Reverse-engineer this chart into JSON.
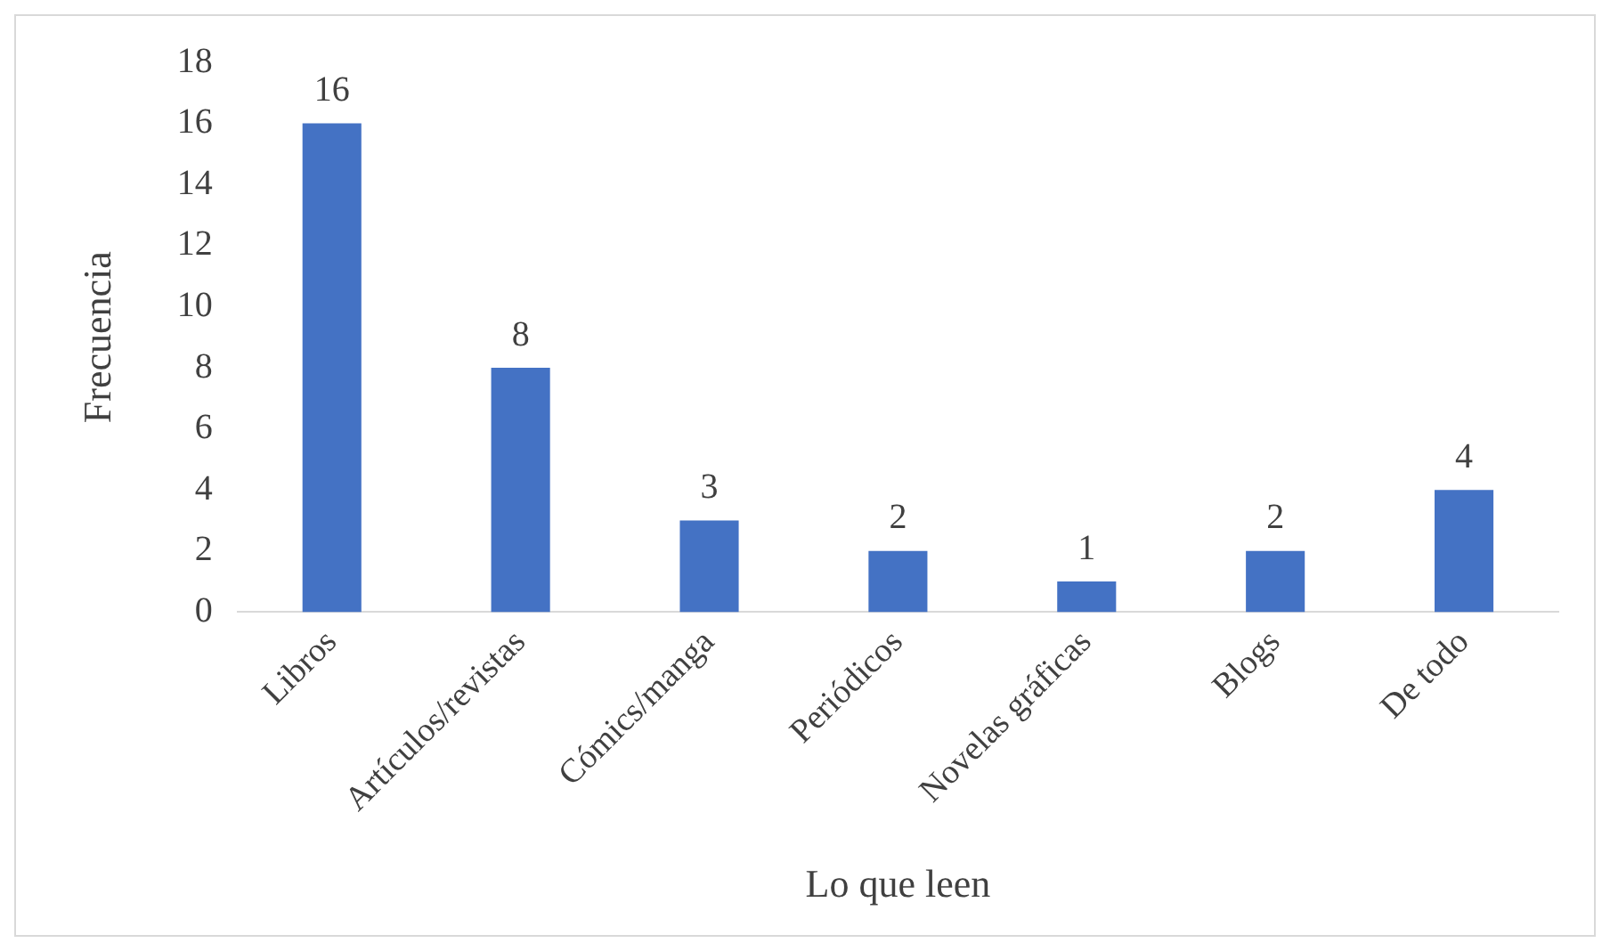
{
  "chart_data": {
    "type": "bar",
    "xlabel": "Lo que leen",
    "ylabel": "Frecuencia",
    "categories": [
      "Libros",
      "Artículos/revistas",
      "Cómics/manga",
      "Periódicos",
      "Novelas gráficas",
      "Blogs",
      "De todo"
    ],
    "values": [
      16,
      8,
      3,
      2,
      1,
      2,
      4
    ],
    "color": "#4472c4",
    "ylim": [
      0,
      18
    ],
    "yticks": [
      0,
      2,
      4,
      6,
      8,
      10,
      12,
      14,
      16,
      18
    ],
    "grid": false,
    "legend": false,
    "data_labels": true
  }
}
